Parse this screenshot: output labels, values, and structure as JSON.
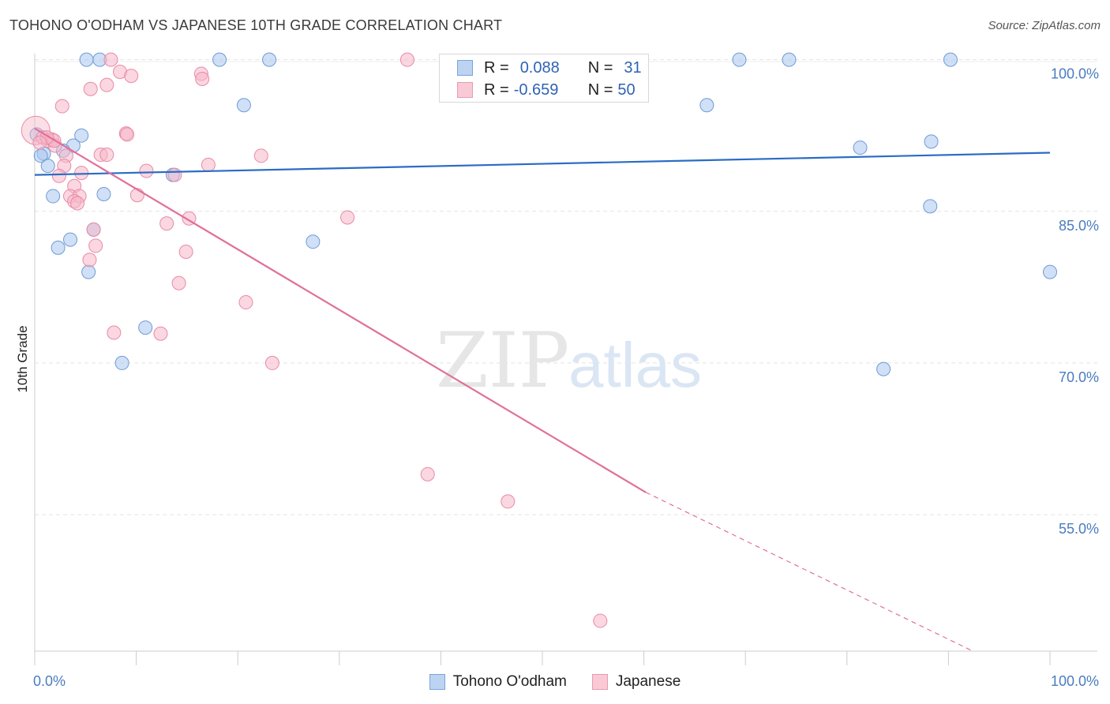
{
  "title": "TOHONO O'ODHAM VS JAPANESE 10TH GRADE CORRELATION CHART",
  "source": "Source: ZipAtlas.com",
  "watermark": {
    "zip": "ZIP",
    "atlas": "atlas"
  },
  "legend_top": [
    {
      "r_label": "R =",
      "r_value": "0.088",
      "n_label": "N =",
      "n_value": "31"
    },
    {
      "r_label": "R =",
      "r_value": "-0.659",
      "n_label": "N =",
      "n_value": "50"
    }
  ],
  "chart_data": {
    "type": "scatter",
    "ylabel": "10th Grade",
    "xlim": [
      0,
      100
    ],
    "ylim": [
      41.5,
      102
    ],
    "y_ticks": [
      {
        "value": 100,
        "label": "100.0%"
      },
      {
        "value": 85,
        "label": "85.0%"
      },
      {
        "value": 70,
        "label": "70.0%"
      },
      {
        "value": 55,
        "label": "55.0%"
      }
    ],
    "x_tick_labels": [
      {
        "value": 0,
        "label": "0.0%"
      },
      {
        "value": 100,
        "label": "100.0%"
      }
    ],
    "x_minor_ticks": [
      0,
      10,
      20,
      30,
      40,
      50,
      60,
      70,
      80,
      90,
      100
    ],
    "grid": true,
    "series": [
      {
        "name": "Tohono O'odham",
        "color": "#a9c6ee",
        "stroke": "#6f9bd6",
        "line_color": "#2a6cc4",
        "trend": {
          "x0": 0,
          "y0": 88.6,
          "x1": 100,
          "y1": 90.8
        },
        "points": [
          [
            5.1,
            100
          ],
          [
            6.4,
            100
          ],
          [
            18.2,
            100
          ],
          [
            23.1,
            100
          ],
          [
            69.4,
            100
          ],
          [
            74.3,
            100
          ],
          [
            90.2,
            100
          ],
          [
            20.6,
            95.5
          ],
          [
            66.2,
            95.5
          ],
          [
            4.6,
            92.5
          ],
          [
            3.8,
            91.5
          ],
          [
            2.8,
            91.0
          ],
          [
            0.9,
            90.7
          ],
          [
            0.6,
            90.5
          ],
          [
            1.3,
            89.5
          ],
          [
            13.6,
            88.6
          ],
          [
            81.3,
            91.3
          ],
          [
            88.3,
            91.9
          ],
          [
            1.8,
            86.5
          ],
          [
            6.8,
            86.7
          ],
          [
            88.2,
            85.5
          ],
          [
            5.8,
            83.2
          ],
          [
            3.5,
            82.2
          ],
          [
            2.3,
            81.4
          ],
          [
            27.4,
            82.0
          ],
          [
            5.3,
            79.0
          ],
          [
            100,
            79.0
          ],
          [
            10.9,
            73.5
          ],
          [
            8.6,
            70.0
          ],
          [
            83.6,
            69.4
          ],
          [
            0.2,
            92.6
          ]
        ]
      },
      {
        "name": "Japanese",
        "color": "#f6b7c8",
        "stroke": "#e98aa6",
        "line_color": "#e0709a",
        "trend": {
          "x0": 0,
          "y0": 93.2,
          "x1": 60.2,
          "y1": 57.2
        },
        "trend_dashed": {
          "x0": 60.2,
          "y0": 57.2,
          "x1": 92.4,
          "y1": 41.5
        },
        "points": [
          [
            0.1,
            93.0
          ],
          [
            0.8,
            92.3
          ],
          [
            1.3,
            92.0
          ],
          [
            1.7,
            92.1
          ],
          [
            2.0,
            91.5
          ],
          [
            1.9,
            92.0
          ],
          [
            2.7,
            95.4
          ],
          [
            3.1,
            90.5
          ],
          [
            2.9,
            89.5
          ],
          [
            2.4,
            88.5
          ],
          [
            3.9,
            87.5
          ],
          [
            3.5,
            86.5
          ],
          [
            4.4,
            86.5
          ],
          [
            4.6,
            88.8
          ],
          [
            3.9,
            86.0
          ],
          [
            4.2,
            85.8
          ],
          [
            5.8,
            83.2
          ],
          [
            6.0,
            81.6
          ],
          [
            5.4,
            80.2
          ],
          [
            5.5,
            97.1
          ],
          [
            7.1,
            97.5
          ],
          [
            7.5,
            100
          ],
          [
            8.4,
            98.8
          ],
          [
            9.5,
            98.4
          ],
          [
            16.4,
            98.6
          ],
          [
            16.5,
            98.1
          ],
          [
            36.7,
            100
          ],
          [
            6.5,
            90.6
          ],
          [
            7.1,
            90.6
          ],
          [
            9.0,
            92.7
          ],
          [
            9.1,
            92.6
          ],
          [
            11.0,
            89.0
          ],
          [
            10.1,
            86.6
          ],
          [
            13.8,
            88.6
          ],
          [
            17.1,
            89.6
          ],
          [
            22.3,
            90.5
          ],
          [
            13.0,
            83.8
          ],
          [
            15.2,
            84.3
          ],
          [
            30.8,
            84.4
          ],
          [
            14.9,
            81.0
          ],
          [
            14.2,
            77.9
          ],
          [
            20.8,
            76.0
          ],
          [
            7.8,
            73.0
          ],
          [
            12.4,
            72.9
          ],
          [
            23.4,
            70.0
          ],
          [
            38.7,
            59.0
          ],
          [
            46.6,
            56.3
          ],
          [
            55.7,
            44.5
          ],
          [
            1.2,
            92.3
          ],
          [
            0.5,
            91.8
          ]
        ]
      }
    ]
  }
}
